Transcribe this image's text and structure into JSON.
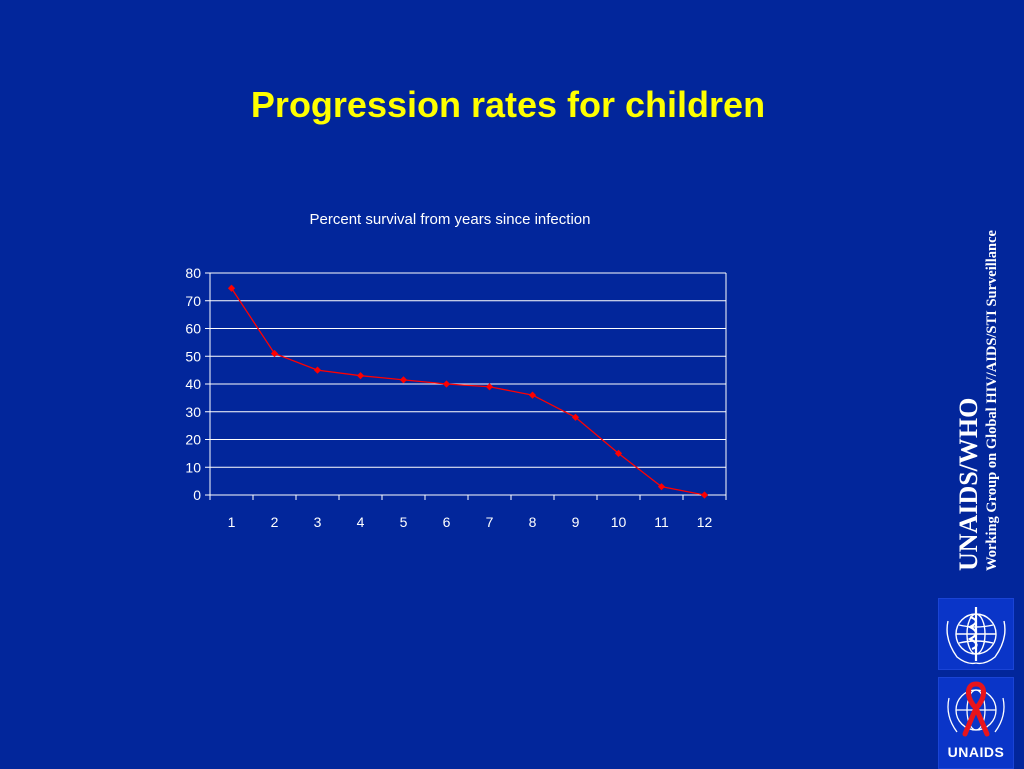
{
  "slide": {
    "title": "Progression rates for children"
  },
  "sidebar": {
    "org_name": "UNAIDS/WHO",
    "org_subtitle": "Working Group on Global HIV/AIDS/STI Surveillance",
    "unaids_logo_text": "UNAIDS"
  },
  "icons": {
    "who_logo": "who-emblem-icon",
    "unaids_logo": "red-ribbon-globe-icon"
  },
  "colors": {
    "background": "#02269b",
    "title": "#ffff00",
    "series_line": "#ff0000",
    "axis": "#ffffff"
  },
  "chart_data": {
    "type": "line",
    "title": "Percent survival from years since infection",
    "xlabel": "",
    "ylabel": "",
    "categories": [
      "1",
      "2",
      "3",
      "4",
      "5",
      "6",
      "7",
      "8",
      "9",
      "10",
      "11",
      "12"
    ],
    "series": [
      {
        "values": [
          74.5,
          51,
          45,
          43,
          41.5,
          40,
          39,
          36,
          28,
          15,
          3,
          0
        ]
      }
    ],
    "ylim": [
      0,
      80
    ],
    "yticks": [
      0,
      10,
      20,
      30,
      40,
      50,
      60,
      70,
      80
    ],
    "grid": true,
    "legend": "none"
  }
}
